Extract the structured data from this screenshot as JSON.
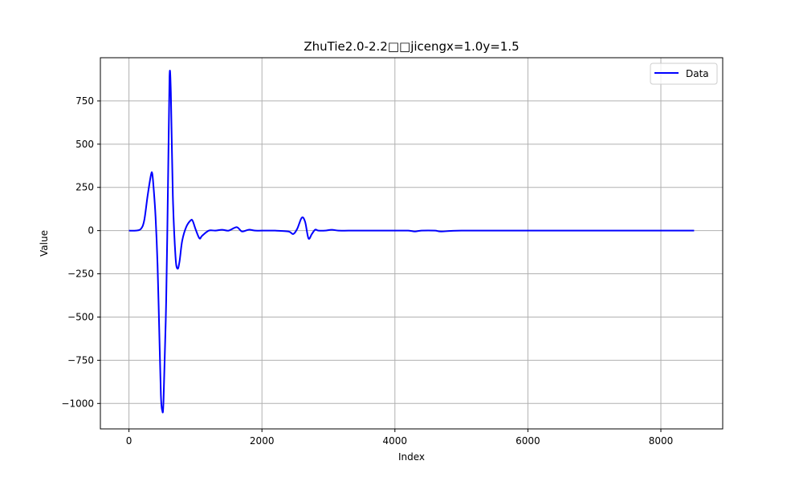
{
  "chart_data": {
    "type": "line",
    "title": "ZhuTie2.0-2.2□□jicengx=1.0y=1.5",
    "xlabel": "Index",
    "ylabel": "Value",
    "xlim": [
      -430,
      8930
    ],
    "ylim": [
      -1147,
      1000
    ],
    "xticks": [
      0,
      2000,
      4000,
      6000,
      8000
    ],
    "xtick_labels": [
      "0",
      "2000",
      "4000",
      "6000",
      "8000"
    ],
    "yticks": [
      -1000,
      -750,
      -500,
      -250,
      0,
      250,
      500,
      750
    ],
    "ytick_labels": [
      "−1000",
      "−750",
      "−500",
      "−250",
      "0",
      "250",
      "500",
      "750"
    ],
    "grid": true,
    "legend_position": "top-right",
    "series": [
      {
        "name": "Data",
        "color": "#0000ff",
        "x": [
          0,
          100,
          180,
          230,
          280,
          330,
          350,
          370,
          400,
          430,
          460,
          480,
          500,
          520,
          560,
          590,
          610,
          630,
          660,
          700,
          730,
          760,
          800,
          860,
          930,
          960,
          1000,
          1060,
          1100,
          1200,
          1300,
          1400,
          1500,
          1620,
          1700,
          1800,
          1900,
          2000,
          2200,
          2400,
          2470,
          2530,
          2600,
          2650,
          2700,
          2750,
          2800,
          2850,
          2950,
          3050,
          3150,
          3300,
          3500,
          3700,
          3800,
          4000,
          4200,
          4300,
          4400,
          4600,
          4700,
          5000,
          6000,
          7000,
          8000,
          8500
        ],
        "values": [
          0,
          0,
          10,
          60,
          200,
          320,
          330,
          250,
          80,
          -200,
          -650,
          -950,
          -1040,
          -980,
          -400,
          350,
          890,
          800,
          200,
          -150,
          -220,
          -180,
          -60,
          20,
          60,
          55,
          10,
          -45,
          -30,
          0,
          0,
          5,
          0,
          20,
          -5,
          5,
          0,
          0,
          0,
          -5,
          -20,
          10,
          75,
          50,
          -45,
          -20,
          5,
          0,
          0,
          5,
          0,
          0,
          0,
          0,
          0,
          0,
          0,
          -5,
          0,
          0,
          -5,
          0,
          0,
          0,
          0,
          0
        ]
      }
    ]
  }
}
